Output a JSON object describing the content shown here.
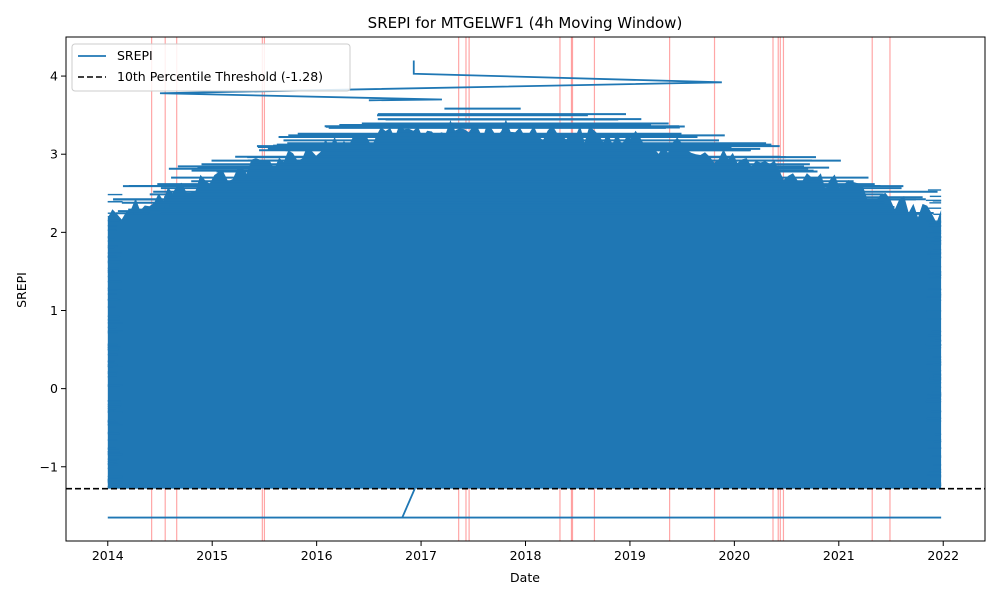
{
  "chart_data": {
    "type": "line",
    "title": "SREPI for MTGELWF1 (4h Moving Window)",
    "xlabel": "Date",
    "ylabel": "SREPI",
    "x_ticks": [
      "2014",
      "2015",
      "2016",
      "2017",
      "2018",
      "2019",
      "2020",
      "2021",
      "2022"
    ],
    "y_ticks": [
      -1,
      0,
      1,
      2,
      3,
      4
    ],
    "y_tick_labels": [
      "−1",
      "0",
      "1",
      "2",
      "3",
      "4"
    ],
    "xlim": [
      2013.6,
      2022.4
    ],
    "ylim": [
      -1.95,
      4.5
    ],
    "grid": false,
    "legend_position": "top-left",
    "series": [
      {
        "name": "SREPI",
        "color": "#1f77b4",
        "description_values": {
          "min_band": -1.28,
          "band_top_early": 2.5,
          "band_top_mid": 3.6,
          "band_top_late": 2.5,
          "flat_low_line": -1.65,
          "peak": 4.2
        }
      }
    ],
    "threshold": {
      "label": "10th Percentile Threshold (-1.28)",
      "value": -1.28,
      "color": "#000000",
      "style": "dashed"
    },
    "event_lines": {
      "color": "#ff0000",
      "dates": [
        2014.42,
        2014.55,
        2014.66,
        2015.48,
        2015.5,
        2017.36,
        2017.43,
        2017.46,
        2018.33,
        2018.44,
        2018.45,
        2018.66,
        2019.38,
        2019.81,
        2020.37,
        2020.42,
        2020.44,
        2020.47,
        2021.32,
        2021.49
      ]
    }
  }
}
